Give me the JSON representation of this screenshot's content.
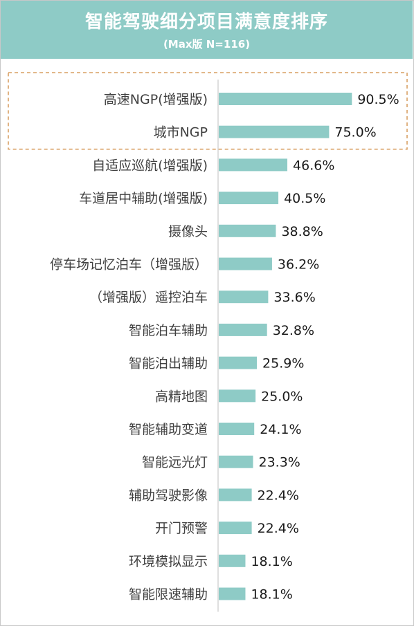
{
  "header": {
    "title": "智能驾驶细分项目满意度排序",
    "subtitle": "(Max版 N=116)"
  },
  "colors": {
    "header_bg": "#8ecbc6",
    "bar": "#8ecbc6",
    "highlight_border": "#d9a064",
    "axis": "#bfbfbf"
  },
  "chart_data": {
    "type": "bar",
    "orientation": "horizontal",
    "title": "智能驾驶细分项目满意度排序",
    "subtitle": "(Max版 N=116)",
    "categories": [
      "高速NGP(增强版)",
      "城市NGP",
      "自适应巡航(增强版)",
      "车道居中辅助(增强版)",
      "摄像头",
      "停车场记忆泊车（增强版）",
      "（增强版）遥控泊车",
      "智能泊车辅助",
      "智能泊出辅助",
      "高精地图",
      "智能辅助变道",
      "智能远光灯",
      "辅助驾驶影像",
      "开门预警",
      "环境模拟显示",
      "智能限速辅助"
    ],
    "values": [
      90.5,
      75.0,
      46.6,
      40.5,
      38.8,
      36.2,
      33.6,
      32.8,
      25.9,
      25.0,
      24.1,
      23.3,
      22.4,
      22.4,
      18.1,
      18.1
    ],
    "value_labels": [
      "90.5%",
      "75.0%",
      "46.6%",
      "40.5%",
      "38.8%",
      "36.2%",
      "33.6%",
      "32.8%",
      "25.9%",
      "25.0%",
      "24.1%",
      "23.3%",
      "22.4%",
      "22.4%",
      "18.1%",
      "18.1%"
    ],
    "xlim": [
      0,
      100
    ],
    "grid": false,
    "legend": "none",
    "highlighted_categories": [
      "高速NGP(增强版)",
      "城市NGP"
    ]
  }
}
